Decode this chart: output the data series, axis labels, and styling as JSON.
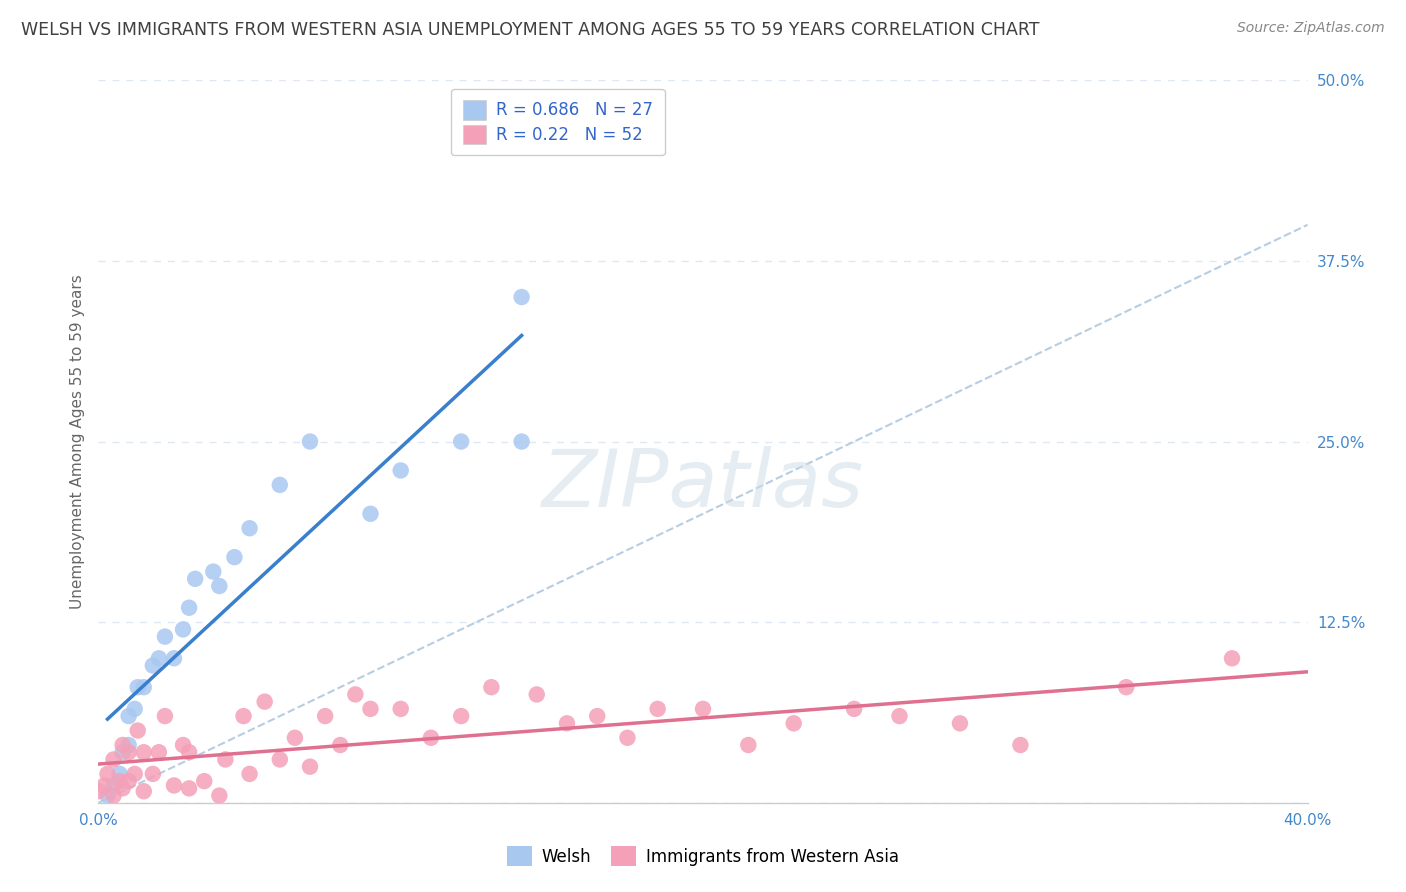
{
  "title": "WELSH VS IMMIGRANTS FROM WESTERN ASIA UNEMPLOYMENT AMONG AGES 55 TO 59 YEARS CORRELATION CHART",
  "source": "Source: ZipAtlas.com",
  "ylabel": "Unemployment Among Ages 55 to 59 years",
  "xlim": [
    0.0,
    0.4
  ],
  "ylim": [
    0.0,
    0.5
  ],
  "x_ticks": [
    0.0,
    0.1,
    0.2,
    0.3,
    0.4
  ],
  "x_tick_labels": [
    "0.0%",
    "",
    "",
    "",
    "40.0%"
  ],
  "y_ticks": [
    0.0,
    0.125,
    0.25,
    0.375,
    0.5
  ],
  "y_tick_labels": [
    "",
    "12.5%",
    "25.0%",
    "37.5%",
    "50.0%"
  ],
  "welsh_R": 0.686,
  "welsh_N": 27,
  "immigrant_R": 0.22,
  "immigrant_N": 52,
  "welsh_color": "#a8c8f0",
  "immigrant_color": "#f4a0b8",
  "welsh_line_color": "#3a7fcc",
  "immigrant_line_color": "#e07090",
  "diagonal_color": "#b0c8e0",
  "watermark": "ZIPatlas",
  "background_color": "#ffffff",
  "grid_color": "#dde8f4",
  "title_color": "#404040",
  "legend_text_color": "#3366cc",
  "tick_color": "#4488cc",
  "ylabel_color": "#666666",
  "source_color": "#888888",
  "welsh_x": [
    0.003,
    0.005,
    0.007,
    0.008,
    0.01,
    0.01,
    0.012,
    0.013,
    0.015,
    0.018,
    0.02,
    0.022,
    0.025,
    0.028,
    0.03,
    0.032,
    0.038,
    0.04,
    0.045,
    0.05,
    0.06,
    0.07,
    0.09,
    0.1,
    0.12,
    0.14,
    0.14
  ],
  "welsh_y": [
    0.005,
    0.012,
    0.02,
    0.035,
    0.04,
    0.06,
    0.065,
    0.08,
    0.08,
    0.095,
    0.1,
    0.115,
    0.1,
    0.12,
    0.135,
    0.155,
    0.16,
    0.15,
    0.17,
    0.19,
    0.22,
    0.25,
    0.2,
    0.23,
    0.25,
    0.25,
    0.35
  ],
  "immigrant_x": [
    0.0,
    0.002,
    0.003,
    0.005,
    0.005,
    0.007,
    0.008,
    0.008,
    0.01,
    0.01,
    0.012,
    0.013,
    0.015,
    0.015,
    0.018,
    0.02,
    0.022,
    0.025,
    0.028,
    0.03,
    0.03,
    0.035,
    0.04,
    0.042,
    0.048,
    0.05,
    0.055,
    0.06,
    0.065,
    0.07,
    0.075,
    0.08,
    0.085,
    0.09,
    0.1,
    0.11,
    0.12,
    0.13,
    0.145,
    0.155,
    0.165,
    0.175,
    0.185,
    0.2,
    0.215,
    0.23,
    0.25,
    0.265,
    0.285,
    0.305,
    0.34,
    0.375
  ],
  "immigrant_y": [
    0.008,
    0.012,
    0.02,
    0.005,
    0.03,
    0.015,
    0.01,
    0.04,
    0.015,
    0.035,
    0.02,
    0.05,
    0.008,
    0.035,
    0.02,
    0.035,
    0.06,
    0.012,
    0.04,
    0.01,
    0.035,
    0.015,
    0.005,
    0.03,
    0.06,
    0.02,
    0.07,
    0.03,
    0.045,
    0.025,
    0.06,
    0.04,
    0.075,
    0.065,
    0.065,
    0.045,
    0.06,
    0.08,
    0.075,
    0.055,
    0.06,
    0.045,
    0.065,
    0.065,
    0.04,
    0.055,
    0.065,
    0.06,
    0.055,
    0.04,
    0.08,
    0.1
  ],
  "legend_labels": [
    "Welsh",
    "Immigrants from Western Asia"
  ],
  "title_fontsize": 12.5,
  "axis_fontsize": 11,
  "tick_fontsize": 11,
  "source_fontsize": 10,
  "legend_fontsize": 12
}
